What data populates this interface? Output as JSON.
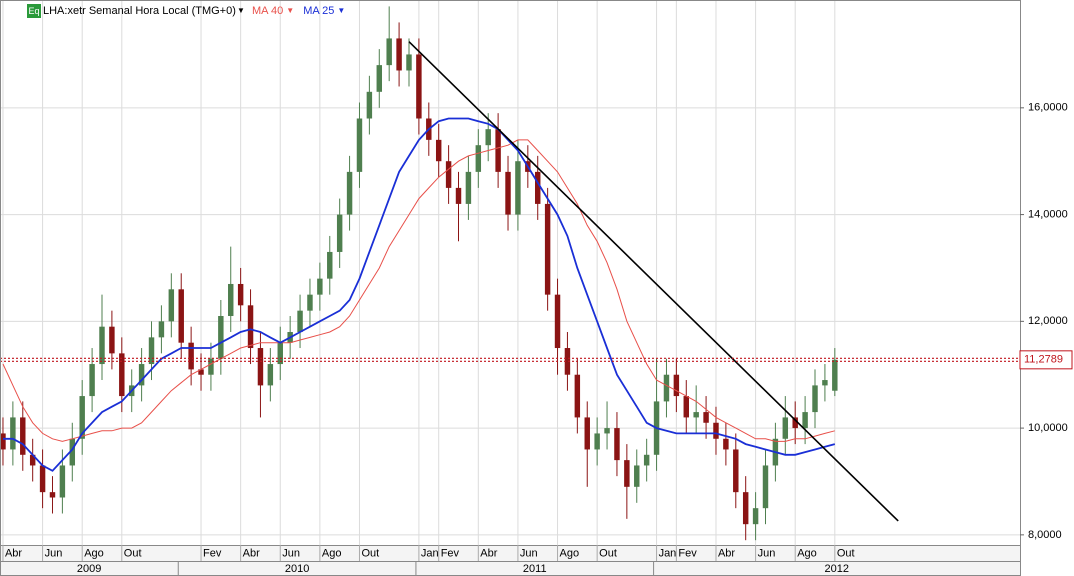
{
  "chart_data": {
    "type": "candlestick",
    "badge": "Eq",
    "title": "LHA:xetr Semanal Hora Local (TMG+0)",
    "up_color": "#4f7f4f",
    "down_color": "#8b1414",
    "grid": true,
    "xlim": [
      -0.3,
      102.7
    ],
    "ylim": [
      7.81,
      18.02
    ],
    "yticks": [
      {
        "value": 8,
        "label": "8,0000"
      },
      {
        "value": 10,
        "label": "10,0000"
      },
      {
        "value": 12,
        "label": "12,0000"
      },
      {
        "value": 14,
        "label": "14,0000"
      },
      {
        "value": 16,
        "label": "16,0000"
      }
    ],
    "xticks": [
      {
        "value": 0,
        "label": "Abr"
      },
      {
        "value": 4,
        "label": "Jun"
      },
      {
        "value": 8,
        "label": "Ago"
      },
      {
        "value": 12,
        "label": "Out"
      },
      {
        "value": 20,
        "label": "Fev"
      },
      {
        "value": 24,
        "label": "Abr"
      },
      {
        "value": 28,
        "label": "Jun"
      },
      {
        "value": 32,
        "label": "Ago"
      },
      {
        "value": 36,
        "label": "Out"
      },
      {
        "value": 42,
        "label": "Jan"
      },
      {
        "value": 44,
        "label": "Fev"
      },
      {
        "value": 48,
        "label": "Abr"
      },
      {
        "value": 52,
        "label": "Jun"
      },
      {
        "value": 56,
        "label": "Ago"
      },
      {
        "value": 60,
        "label": "Out"
      },
      {
        "value": 66,
        "label": "Jan"
      },
      {
        "value": 68,
        "label": "Fev"
      },
      {
        "value": 72,
        "label": "Abr"
      },
      {
        "value": 76,
        "label": "Jun"
      },
      {
        "value": 80,
        "label": "Ago"
      },
      {
        "value": 84,
        "label": "Out"
      }
    ],
    "years": [
      {
        "value": -0.3,
        "label": "2009"
      },
      {
        "value": 17.7,
        "label": "2010"
      },
      {
        "value": 41.7,
        "label": "2011"
      },
      {
        "value": 65.7,
        "label": "2012"
      }
    ],
    "open": [
      9.9,
      9.6,
      10.2,
      9.5,
      9.3,
      8.8,
      8.7,
      9.3,
      9.8,
      10.6,
      11.2,
      11.9,
      11.4,
      10.6,
      10.8,
      11.2,
      11.7,
      12.0,
      12.6,
      11.6,
      11.1,
      11.0,
      11.3,
      12.1,
      12.7,
      12.3,
      11.5,
      10.8,
      11.2,
      11.6,
      11.8,
      12.2,
      12.5,
      12.8,
      13.3,
      14.0,
      14.8,
      15.8,
      16.3,
      16.8,
      17.3,
      16.7,
      17.0,
      15.8,
      15.4,
      15.0,
      14.5,
      14.2,
      14.8,
      15.3,
      15.6,
      14.8,
      14.0,
      15.0,
      14.8,
      14.2,
      12.5,
      11.5,
      11.0,
      10.2,
      9.6,
      9.9,
      10.0,
      9.4,
      8.9,
      9.3,
      9.5,
      10.5,
      11.0,
      10.6,
      10.2,
      10.3,
      10.1,
      9.8,
      9.6,
      8.8,
      8.2,
      8.5,
      9.3,
      9.8,
      10.2,
      10.0,
      10.3,
      10.8,
      10.7
    ],
    "high": [
      10.2,
      10.5,
      10.5,
      9.8,
      9.6,
      9.1,
      9.6,
      10.1,
      10.9,
      11.5,
      12.5,
      12.2,
      11.7,
      11.1,
      11.5,
      12.0,
      12.3,
      12.9,
      12.9,
      11.9,
      11.4,
      11.6,
      12.4,
      13.4,
      13.0,
      12.6,
      11.8,
      11.5,
      11.9,
      12.1,
      12.5,
      12.8,
      13.1,
      13.6,
      14.3,
      15.1,
      16.1,
      16.6,
      17.1,
      17.9,
      17.6,
      17.3,
      17.3,
      16.1,
      15.7,
      15.3,
      14.8,
      15.1,
      15.6,
      15.9,
      15.9,
      15.1,
      15.4,
      15.3,
      15.1,
      14.5,
      12.8,
      11.8,
      11.3,
      10.5,
      10.2,
      10.5,
      10.3,
      9.7,
      9.6,
      9.8,
      11.3,
      11.3,
      11.3,
      10.9,
      10.8,
      10.6,
      10.4,
      10.1,
      9.9,
      9.1,
      8.8,
      9.6,
      10.1,
      10.6,
      10.5,
      10.6,
      11.1,
      11.2,
      11.5
    ],
    "low": [
      9.3,
      9.3,
      9.2,
      9.0,
      8.5,
      8.4,
      8.4,
      9.0,
      9.5,
      10.3,
      10.9,
      11.1,
      10.3,
      10.3,
      10.5,
      10.9,
      11.4,
      11.7,
      11.3,
      10.8,
      10.7,
      10.7,
      11.0,
      11.8,
      12.0,
      11.2,
      10.2,
      10.5,
      10.9,
      11.3,
      11.5,
      11.9,
      12.2,
      12.5,
      13.0,
      13.7,
      14.5,
      15.5,
      16.0,
      16.5,
      16.4,
      16.4,
      15.5,
      15.1,
      14.7,
      14.2,
      13.5,
      13.9,
      14.5,
      15.0,
      14.5,
      13.7,
      13.7,
      14.5,
      13.9,
      12.2,
      11.0,
      10.7,
      9.9,
      8.9,
      9.3,
      9.6,
      9.1,
      8.3,
      8.6,
      9.0,
      9.2,
      10.2,
      10.3,
      9.9,
      9.9,
      9.8,
      9.5,
      9.3,
      8.5,
      7.9,
      7.9,
      8.2,
      9.0,
      9.5,
      9.7,
      9.7,
      10.0,
      10.5,
      10.6
    ],
    "close": [
      9.6,
      10.2,
      9.5,
      9.3,
      8.8,
      8.7,
      9.3,
      9.8,
      10.6,
      11.2,
      11.9,
      11.4,
      10.6,
      10.8,
      11.2,
      11.7,
      12.0,
      12.6,
      11.6,
      11.1,
      11.0,
      11.3,
      12.1,
      12.7,
      12.3,
      11.5,
      10.8,
      11.2,
      11.6,
      11.8,
      12.2,
      12.5,
      12.8,
      13.3,
      14.0,
      14.8,
      15.8,
      16.3,
      16.8,
      17.3,
      16.7,
      17.0,
      15.8,
      15.4,
      15.0,
      14.5,
      14.2,
      14.8,
      15.3,
      15.6,
      14.8,
      14.0,
      15.0,
      14.8,
      14.2,
      12.5,
      11.5,
      11.0,
      10.2,
      9.6,
      9.9,
      10.0,
      9.4,
      8.9,
      9.3,
      9.5,
      10.5,
      11.0,
      10.6,
      10.2,
      10.3,
      10.1,
      9.8,
      9.6,
      8.8,
      8.2,
      8.5,
      9.3,
      9.8,
      10.2,
      10.0,
      10.3,
      10.8,
      10.9,
      11.28
    ],
    "series": [
      {
        "name": "MA 40",
        "color": "#e8504a",
        "values": [
          11.2,
          10.8,
          10.4,
          10.1,
          9.9,
          9.8,
          9.75,
          9.8,
          9.85,
          9.9,
          9.95,
          9.95,
          10.0,
          10.0,
          10.1,
          10.3,
          10.5,
          10.7,
          10.85,
          11.0,
          11.1,
          11.2,
          11.3,
          11.4,
          11.5,
          11.55,
          11.6,
          11.6,
          11.6,
          11.6,
          11.65,
          11.7,
          11.75,
          11.8,
          11.9,
          12.1,
          12.4,
          12.7,
          13.0,
          13.4,
          13.7,
          14.0,
          14.3,
          14.5,
          14.7,
          14.85,
          15.0,
          15.1,
          15.15,
          15.2,
          15.25,
          15.3,
          15.4,
          15.4,
          15.2,
          15.0,
          14.8,
          14.5,
          14.2,
          13.8,
          13.5,
          13.1,
          12.6,
          12.0,
          11.6,
          11.2,
          10.9,
          10.8,
          10.7,
          10.6,
          10.5,
          10.35,
          10.2,
          10.1,
          10.0,
          9.9,
          9.8,
          9.8,
          9.75,
          9.75,
          9.8,
          9.8,
          9.85,
          9.9,
          9.95
        ]
      },
      {
        "name": "MA 25",
        "color": "#1a2fd6",
        "values": [
          9.8,
          9.8,
          9.7,
          9.5,
          9.3,
          9.2,
          9.4,
          9.6,
          9.9,
          10.1,
          10.3,
          10.4,
          10.5,
          10.7,
          10.9,
          11.1,
          11.3,
          11.4,
          11.5,
          11.5,
          11.5,
          11.5,
          11.6,
          11.7,
          11.8,
          11.85,
          11.8,
          11.7,
          11.6,
          11.7,
          11.8,
          11.9,
          12.0,
          12.1,
          12.2,
          12.4,
          12.8,
          13.3,
          13.8,
          14.3,
          14.8,
          15.1,
          15.4,
          15.6,
          15.75,
          15.8,
          15.8,
          15.8,
          15.75,
          15.7,
          15.6,
          15.4,
          15.2,
          14.9,
          14.6,
          14.3,
          14.0,
          13.6,
          13.0,
          12.5,
          12.0,
          11.5,
          11.0,
          10.7,
          10.4,
          10.1,
          10.0,
          9.95,
          9.9,
          9.9,
          9.9,
          9.9,
          9.9,
          9.85,
          9.8,
          9.7,
          9.65,
          9.6,
          9.55,
          9.5,
          9.5,
          9.55,
          9.6,
          9.65,
          9.7
        ]
      }
    ],
    "trendline": {
      "x": [
        41,
        90.4
      ],
      "y": [
        17.24,
        8.26
      ],
      "color": "#000000"
    },
    "last_price": {
      "value": 11.2789,
      "value_label": "11,2789",
      "color": "#c0141c"
    }
  }
}
